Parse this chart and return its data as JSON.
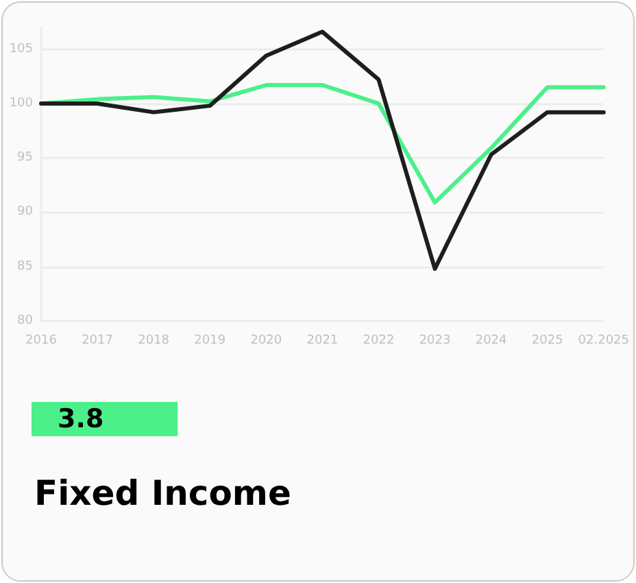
{
  "chart_data": {
    "type": "line",
    "title": "Fixed Income",
    "annotations": [
      "3.8"
    ],
    "categories": [
      "2016",
      "2017",
      "2018",
      "2019",
      "2020",
      "2021",
      "2022",
      "2023",
      "2024",
      "2025",
      "02.2025"
    ],
    "series": [
      {
        "color": "#4cf08a",
        "values": [
          100,
          100.4,
          100.6,
          100.2,
          101.7,
          101.7,
          100,
          90.9,
          95.9,
          101.5,
          101.5
        ]
      },
      {
        "color": "#1e1e1e",
        "values": [
          100,
          100,
          99.2,
          99.8,
          104.4,
          106.6,
          102.2,
          84.8,
          95.3,
          99.2,
          99.2
        ]
      }
    ],
    "ylim": [
      80,
      107
    ],
    "yticks": [
      80,
      85,
      90,
      95,
      100,
      105
    ],
    "grid": "y",
    "marker": "none",
    "line_style": "solid"
  }
}
